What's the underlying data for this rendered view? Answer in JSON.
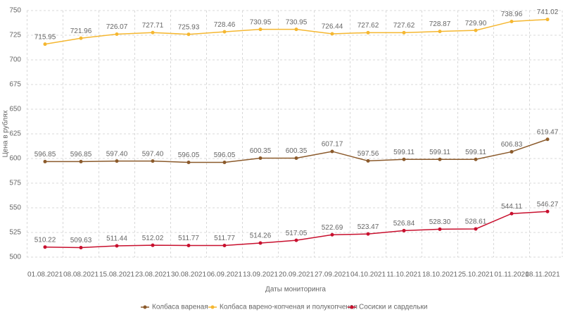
{
  "chart_data": {
    "type": "line",
    "y_label": "Цена в рублях",
    "x_label": "Даты мониторинга",
    "categories": [
      "01.08.2021",
      "08.08.2021",
      "15.08.2021",
      "23.08.2021",
      "30.08.2021",
      "06.09.2021",
      "13.09.2021",
      "20.09.2021",
      "27.09.2021",
      "04.10.2021",
      "11.10.2021",
      "18.10.2021",
      "25.10.2021",
      "01.11.2021",
      "08.11.2021"
    ],
    "ylim": [
      500,
      750
    ],
    "yticks": [
      500,
      525,
      550,
      575,
      600,
      625,
      650,
      675,
      700,
      725,
      750
    ],
    "grid": true,
    "series": [
      {
        "name": "Колбаса вареная",
        "color": "#8b5a2b",
        "values": [
          596.85,
          596.85,
          597.4,
          597.4,
          596.05,
          596.05,
          600.35,
          600.35,
          607.17,
          597.56,
          599.11,
          599.11,
          599.11,
          606.83,
          619.47
        ],
        "value_labels": [
          "596.85",
          "596.85",
          "597.40",
          "597.40",
          "596.05",
          "596.05",
          "600.35",
          "600.35",
          "607.17",
          "597.56",
          "599.11",
          "599.11",
          "599.11",
          "606.83",
          "619.47"
        ]
      },
      {
        "name": "Колбаса варено-копченая и полукопченая",
        "color": "#f5b731",
        "values": [
          715.95,
          721.96,
          726.07,
          727.71,
          725.93,
          728.46,
          730.95,
          730.95,
          726.44,
          727.62,
          727.62,
          728.87,
          729.9,
          738.96,
          741.02
        ],
        "value_labels": [
          "715.95",
          "721.96",
          "726.07",
          "727.71",
          "725.93",
          "728.46",
          "730.95",
          "730.95",
          "726.44",
          "727.62",
          "727.62",
          "728.87",
          "729.90",
          "738.96",
          "741.02"
        ]
      },
      {
        "name": "Сосиски и сардельки",
        "color": "#c8102e",
        "values": [
          510.22,
          509.63,
          511.44,
          512.02,
          511.77,
          511.77,
          514.26,
          517.05,
          522.69,
          523.47,
          526.84,
          528.3,
          528.61,
          544.11,
          546.27
        ],
        "value_labels": [
          "510.22",
          "509.63",
          "511.44",
          "512.02",
          "511.77",
          "511.77",
          "514.26",
          "517.05",
          "522.69",
          "523.47",
          "526.84",
          "528.30",
          "528.61",
          "544.11",
          "546.27"
        ]
      }
    ]
  }
}
